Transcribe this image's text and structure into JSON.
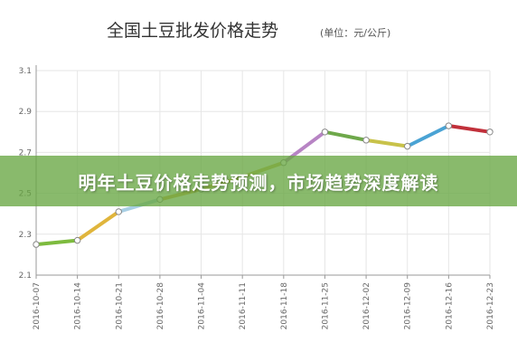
{
  "banner": {
    "text": "明年土豆价格走势预测，市场趋势深度解读"
  },
  "colors": {
    "background": "#ffffff",
    "grid": "#e6e6e6",
    "axis": "#999999",
    "banner": "#68a642"
  },
  "chart_data": {
    "type": "line",
    "title": "全国土豆批发价格走势",
    "unit": "(单位：元/公斤)",
    "xlabel": "",
    "ylabel": "",
    "ylim": [
      2.1,
      3.1
    ],
    "yticks": [
      "2.1",
      "2.3",
      "2.5",
      "2.7",
      "2.9",
      "3.1"
    ],
    "grid": true,
    "x": [
      "2016-10-07",
      "2016-10-14",
      "2016-10-21",
      "2016-10-28",
      "2016-11-04",
      "2016-11-11",
      "2016-11-18",
      "2016-11-25",
      "2016-12-02",
      "2016-12-09",
      "2016-12-16",
      "2016-12-23"
    ],
    "series": [
      {
        "values": [
          2.25,
          2.27,
          2.41,
          2.47,
          2.52,
          2.58,
          2.65,
          2.8,
          2.76,
          2.73,
          2.83,
          2.8
        ]
      }
    ],
    "segment_colors": [
      "#7dbb3e",
      "#e0b53c",
      "#a8cfe4",
      "#d9b248",
      "#d4ac3d",
      "#d2bd58",
      "#b784c4",
      "#6ea84a",
      "#c8c24a",
      "#4aa3d4",
      "#c1303a"
    ]
  }
}
